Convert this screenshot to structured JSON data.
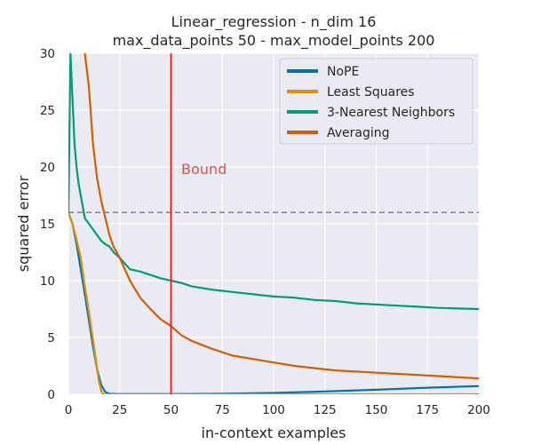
{
  "chart_data": {
    "type": "line",
    "title": [
      "Linear_regression - n_dim 16",
      "max_data_points 50 - max_model_points 200"
    ],
    "xlabel": "in-context examples",
    "ylabel": "squared error",
    "xlim": [
      0,
      200
    ],
    "ylim": [
      0,
      30
    ],
    "xticks": [
      "0",
      "25",
      "50",
      "75",
      "100",
      "125",
      "150",
      "175",
      "200"
    ],
    "yticks": [
      "0",
      "5",
      "10",
      "15",
      "20",
      "25",
      "30"
    ],
    "grid": true,
    "legend_position": "top-right",
    "series": [
      {
        "name": "NoPE",
        "color": "#0173b2",
        "x": [
          0,
          2,
          4,
          6,
          8,
          10,
          12,
          14,
          16,
          18,
          20,
          25,
          30,
          50,
          75,
          100,
          125,
          150,
          175,
          200
        ],
        "y": [
          16,
          15,
          13.2,
          11,
          8.8,
          6.5,
          4.2,
          2.2,
          0.8,
          0.2,
          0.05,
          0.02,
          0.02,
          0.02,
          0.05,
          0.12,
          0.25,
          0.4,
          0.58,
          0.72
        ]
      },
      {
        "name": "Least Squares",
        "color": "#de8f05",
        "x": [
          0,
          2,
          4,
          6,
          8,
          10,
          12,
          14,
          15,
          16,
          17,
          20,
          200
        ],
        "y": [
          16,
          15,
          13.6,
          12,
          9.5,
          7.2,
          4.8,
          2.2,
          1.0,
          0.3,
          0,
          0,
          0
        ]
      },
      {
        "name": "3-Nearest Neighbors",
        "color": "#029e73",
        "x": [
          0,
          1,
          2,
          3,
          4,
          5,
          6,
          7,
          8,
          10,
          12,
          14,
          16,
          18,
          20,
          22,
          25,
          30,
          35,
          40,
          45,
          50,
          55,
          60,
          70,
          80,
          90,
          100,
          110,
          120,
          130,
          140,
          150,
          160,
          170,
          180,
          190,
          200
        ],
        "y": [
          16,
          30,
          26,
          22,
          20,
          18.5,
          17.5,
          16.5,
          15.5,
          15,
          14.5,
          14,
          13.5,
          13.2,
          13,
          12.5,
          12,
          11,
          10.8,
          10.5,
          10.2,
          10,
          9.8,
          9.5,
          9.2,
          9,
          8.8,
          8.6,
          8.5,
          8.3,
          8.2,
          8.0,
          7.9,
          7.8,
          7.7,
          7.6,
          7.55,
          7.5
        ]
      },
      {
        "name": "Averaging",
        "color": "#d55e00",
        "x": [
          8,
          10,
          12,
          14,
          16,
          18,
          20,
          22,
          25,
          30,
          35,
          40,
          45,
          50,
          55,
          60,
          70,
          80,
          90,
          100,
          110,
          120,
          130,
          140,
          150,
          160,
          170,
          180,
          190,
          200
        ],
        "y": [
          30,
          27,
          22,
          19,
          17,
          15.5,
          14,
          13,
          12,
          10,
          8.5,
          7.5,
          6.6,
          6,
          5.2,
          4.7,
          4,
          3.4,
          3.1,
          2.8,
          2.5,
          2.3,
          2.1,
          2.0,
          1.9,
          1.8,
          1.7,
          1.6,
          1.5,
          1.4
        ]
      }
    ],
    "hlines": [
      {
        "y": 16,
        "color": "#808080",
        "style": "dashed"
      }
    ],
    "vlines": [
      {
        "x": 50,
        "color": "#e41a1c"
      }
    ],
    "annotations": [
      {
        "text": "Bound",
        "x": 55,
        "y": 20,
        "color": "#d9534f"
      }
    ]
  }
}
